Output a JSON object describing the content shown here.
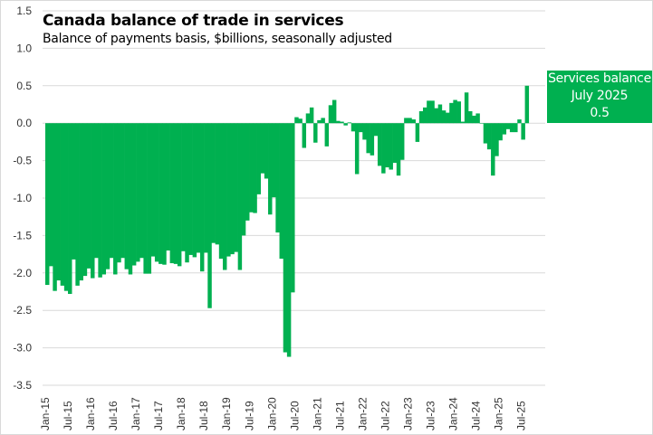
{
  "chart_data": {
    "type": "bar",
    "title": "Canada balance of trade in services",
    "subtitle": "Balance of payments basis, $billions, seasonally adjusted",
    "xlabel": "",
    "ylabel": "",
    "ylim": [
      -3.5,
      1.5
    ],
    "yticks": [
      "1.5",
      "1.0",
      "0.5",
      "0.0",
      "-0.5",
      "-1.0",
      "-1.5",
      "-2.0",
      "-2.5",
      "-3.0",
      "-3.5"
    ],
    "ytick_values": [
      1.5,
      1.0,
      0.5,
      0.0,
      -0.5,
      -1.0,
      -1.5,
      -2.0,
      -2.5,
      -3.0,
      -3.5
    ],
    "grid": true,
    "bar_color": "#00b050",
    "x_tick_labels": [
      "Jan-15",
      "Jul-15",
      "Jan-16",
      "Jul-16",
      "Jan-17",
      "Jul-17",
      "Jan-18",
      "Jul-18",
      "Jan-19",
      "Jul-19",
      "Jan-20",
      "Jul-20",
      "Jan-21",
      "Jul-21",
      "Jan-22",
      "Jul-22",
      "Jan-23",
      "Jul-23",
      "Jan-24",
      "Jul-24",
      "Jan-25",
      "Jul-25"
    ],
    "x_start": "Jan-15",
    "x_end": "Jul-25",
    "series": [
      {
        "name": "Services balance",
        "values": [
          -2.16,
          -1.91,
          -2.24,
          -2.1,
          -2.17,
          -2.24,
          -2.28,
          -1.82,
          -2.17,
          -2.1,
          -2.04,
          -1.94,
          -2.07,
          -1.8,
          -2.06,
          -2.02,
          -1.95,
          -1.8,
          -2.02,
          -1.86,
          -1.8,
          -1.95,
          -2.02,
          -1.9,
          -1.85,
          -1.8,
          -2.01,
          -2.01,
          -1.78,
          -1.85,
          -1.88,
          -1.89,
          -1.7,
          -1.87,
          -1.88,
          -1.91,
          -1.71,
          -1.86,
          -1.76,
          -1.79,
          -1.73,
          -1.98,
          -1.73,
          -2.47,
          -1.6,
          -1.62,
          -1.81,
          -1.96,
          -1.78,
          -1.75,
          -1.72,
          -1.96,
          -1.5,
          -1.3,
          -1.19,
          -1.2,
          -0.95,
          -0.67,
          -0.74,
          -1.22,
          -0.99,
          -1.46,
          -1.81,
          -3.06,
          -3.12,
          -2.26,
          0.08,
          0.06,
          -0.33,
          0.13,
          0.21,
          -0.26,
          0.04,
          0.07,
          -0.31,
          0.24,
          0.31,
          0.03,
          0.02,
          -0.03,
          0.01,
          -0.11,
          -0.68,
          -0.12,
          -0.22,
          -0.4,
          -0.43,
          -0.17,
          -0.57,
          -0.67,
          -0.59,
          -0.62,
          -0.53,
          -0.7,
          -0.49,
          0.07,
          0.07,
          0.05,
          -0.25,
          0.16,
          0.21,
          0.3,
          0.3,
          0.2,
          0.25,
          0.17,
          0.14,
          0.27,
          0.31,
          0.29,
          0.02,
          0.41,
          0.16,
          0.1,
          0.13,
          0.0,
          -0.27,
          -0.35,
          -0.7,
          -0.44,
          -0.23,
          -0.15,
          -0.08,
          -0.12,
          -0.12,
          0.05,
          -0.22,
          0.5
        ]
      }
    ]
  },
  "callout": {
    "line1": "Services balance",
    "line2": "July 2025",
    "line3": "0.5"
  }
}
